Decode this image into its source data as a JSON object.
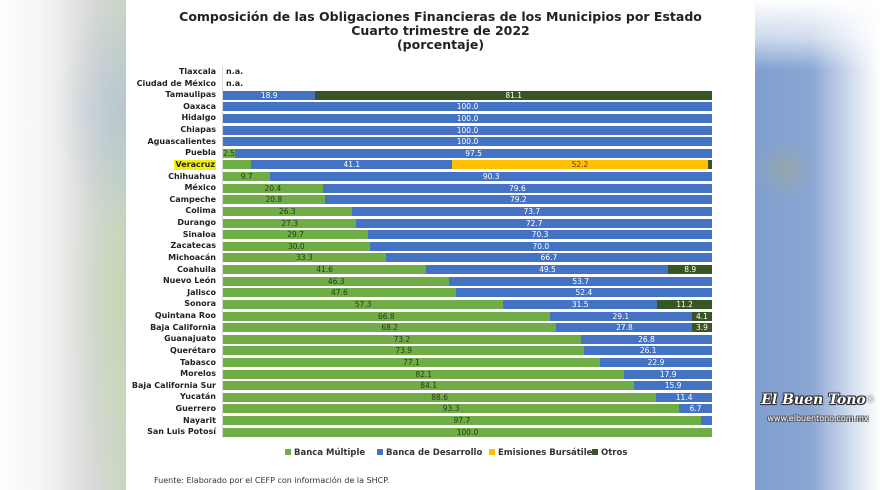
{
  "chart_data": {
    "type": "bar",
    "orientation": "horizontal",
    "stacked": true,
    "title": "Composición de las Obligaciones Financieras de los Municipios por Estado",
    "subtitle": "Cuarto trimestre de 2022",
    "unit_note": "(porcentaje)",
    "xlim": [
      0,
      100
    ],
    "grid": false,
    "legend_position": "bottom",
    "na_label": "n.a.",
    "highlight_category": "Veracruz",
    "categories": [
      "Tlaxcala",
      "Ciudad de México",
      "Tamaulipas",
      "Oaxaca",
      "Hidalgo",
      "Chiapas",
      "Aguascalientes",
      "Puebla",
      "Veracruz",
      "Chihuahua",
      "México",
      "Campeche",
      "Colima",
      "Durango",
      "Sinaloa",
      "Zacatecas",
      "Michoacán",
      "Coahuila",
      "Nuevo León",
      "Jalisco",
      "Sonora",
      "Quintana Roo",
      "Baja California",
      "Guanajuato",
      "Querétaro",
      "Tabasco",
      "Morelos",
      "Baja California Sur",
      "Yucatán",
      "Guerrero",
      "Nayarit",
      "San Luis Potosí"
    ],
    "series": [
      {
        "name": "Banca Múltiple",
        "color": "#70ad47",
        "values": [
          null,
          null,
          0,
          0,
          0,
          0,
          0,
          2.5,
          5.8,
          9.7,
          20.4,
          20.8,
          26.3,
          27.3,
          29.7,
          30.0,
          33.3,
          41.6,
          46.3,
          47.6,
          57.3,
          66.8,
          68.2,
          73.2,
          73.9,
          77.1,
          82.1,
          84.1,
          88.6,
          93.3,
          97.7,
          100.0
        ],
        "labels": [
          null,
          null,
          null,
          null,
          null,
          null,
          null,
          "2.5",
          null,
          "9.7",
          "20.4",
          "20.8",
          "26.3",
          "27.3",
          "29.7",
          "30.0",
          "33.3",
          "41.6",
          "46.3",
          "47.6",
          "57.3",
          "66.8",
          "68.2",
          "73.2",
          "73.9",
          "77.1",
          "82.1",
          "84.1",
          "88.6",
          "93.3",
          "97.7",
          "100.0"
        ]
      },
      {
        "name": "Banca de Desarrollo",
        "color": "#4472c4",
        "values": [
          null,
          null,
          18.9,
          100.0,
          100.0,
          100.0,
          100.0,
          97.5,
          41.1,
          90.3,
          79.6,
          79.2,
          73.7,
          72.7,
          70.3,
          70.0,
          66.7,
          49.5,
          53.7,
          52.4,
          31.5,
          29.1,
          27.8,
          26.8,
          26.1,
          22.9,
          17.9,
          15.9,
          11.4,
          6.7,
          2.3,
          0
        ],
        "labels": [
          null,
          null,
          "18.9",
          "100.0",
          "100.0",
          "100.0",
          "100.0",
          "97.5",
          "41.1",
          "90.3",
          "79.6",
          "79.2",
          "73.7",
          "72.7",
          "70.3",
          "70.0",
          "66.7",
          "49.5",
          "53.7",
          "52.4",
          "31.5",
          "29.1",
          "27.8",
          "26.8",
          "26.1",
          "22.9",
          "17.9",
          "15.9",
          "11.4",
          "6.7",
          null,
          null
        ]
      },
      {
        "name": "Emisiones Bursátiles",
        "color": "#ffc000",
        "values": [
          null,
          null,
          0,
          0,
          0,
          0,
          0,
          0,
          52.2,
          0,
          0,
          0,
          0,
          0,
          0,
          0,
          0,
          0,
          0,
          0,
          0,
          0,
          0,
          0,
          0,
          0,
          0,
          0,
          0,
          0,
          0,
          0
        ],
        "labels": [
          null,
          null,
          null,
          null,
          null,
          null,
          null,
          null,
          "52.2",
          null,
          null,
          null,
          null,
          null,
          null,
          null,
          null,
          null,
          null,
          null,
          null,
          null,
          null,
          null,
          null,
          null,
          null,
          null,
          null,
          null,
          null,
          null
        ]
      },
      {
        "name": "Otros",
        "color": "#375623",
        "values": [
          null,
          null,
          81.1,
          0,
          0,
          0,
          0,
          0,
          0.9,
          0,
          0,
          0,
          0,
          0,
          0,
          0,
          0,
          8.9,
          0,
          0,
          11.2,
          4.1,
          3.9,
          0,
          0,
          0,
          0,
          0,
          0,
          0,
          0,
          0
        ],
        "labels": [
          null,
          null,
          "81.1",
          null,
          null,
          null,
          null,
          null,
          null,
          null,
          null,
          null,
          null,
          null,
          null,
          null,
          null,
          "8.9",
          null,
          null,
          "11.2",
          "4.1",
          "3.9",
          null,
          null,
          null,
          null,
          null,
          null,
          null,
          null,
          null
        ]
      }
    ]
  },
  "legend": {
    "items": [
      {
        "label": "Banca Múltiple",
        "color": "#70ad47"
      },
      {
        "label": "Banca de Desarrollo",
        "color": "#4472c4"
      },
      {
        "label": "Emisiones Bursátiles",
        "color": "#ffc000"
      },
      {
        "label": "Otros",
        "color": "#375623"
      }
    ]
  },
  "footer": {
    "source": "Fuente: Elaborado por el CEFP con información de la SHCP."
  },
  "watermark": {
    "brand": "El Buen Tono",
    "registered": "®",
    "url": "www.elbuentono.com.mx"
  }
}
